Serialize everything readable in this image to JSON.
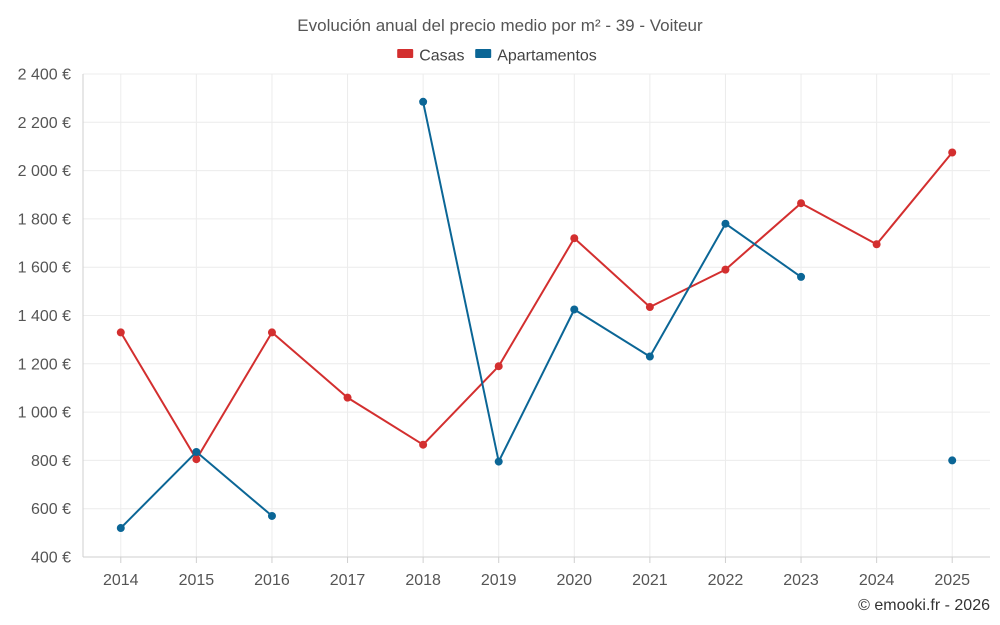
{
  "chart_data": {
    "type": "line",
    "title": "Evolución anual del precio medio por m² - 39 - Voiteur",
    "categories": [
      "2014",
      "2015",
      "2016",
      "2017",
      "2018",
      "2019",
      "2020",
      "2021",
      "2022",
      "2023",
      "2024",
      "2025"
    ],
    "series": [
      {
        "name": "Casas",
        "color": "#d32f2f",
        "values": [
          1330,
          805,
          1330,
          1060,
          865,
          1190,
          1720,
          1435,
          1590,
          1865,
          1695,
          2075
        ]
      },
      {
        "name": "Apartamentos",
        "color": "#0b6696",
        "values": [
          520,
          835,
          570,
          null,
          2285,
          795,
          1425,
          1230,
          1780,
          1560,
          null,
          800
        ]
      }
    ],
    "ylim": [
      400,
      2400
    ],
    "yticks": [
      400,
      600,
      800,
      1000,
      1200,
      1400,
      1600,
      1800,
      2000,
      2200,
      2400
    ],
    "ytick_labels": [
      "400 €",
      "600 €",
      "800 €",
      "1 000 €",
      "1 200 €",
      "1 400 €",
      "1 600 €",
      "1 800 €",
      "2 000 €",
      "2 200 €",
      "2 400 €"
    ],
    "grid": true,
    "legend_position": "top-center",
    "xlabel": "",
    "ylabel": ""
  },
  "credit": "© emooki.fr - 2026"
}
